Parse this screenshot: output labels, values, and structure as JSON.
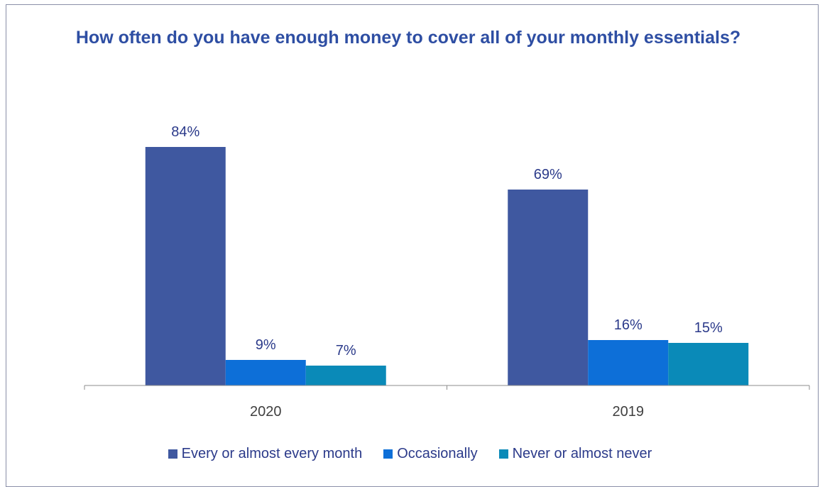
{
  "chart_data": {
    "type": "bar",
    "title": "How often do you have enough money to cover all of your monthly essentials?",
    "categories": [
      "2020",
      "2019"
    ],
    "series": [
      {
        "name": "Every or almost every month",
        "values": [
          84,
          69
        ],
        "labels": [
          "84%",
          "69%"
        ],
        "color": "#3f58a0"
      },
      {
        "name": "Occasionally",
        "values": [
          9,
          16
        ],
        "labels": [
          "9%",
          "16%"
        ],
        "color": "#0d6fd8"
      },
      {
        "name": "Never or almost never",
        "values": [
          7,
          15
        ],
        "labels": [
          "7%",
          "15%"
        ],
        "color": "#0a8ab8"
      }
    ],
    "ylim": [
      0,
      100
    ],
    "grid": false,
    "legend": "bottom",
    "xlabel": "",
    "ylabel": ""
  }
}
